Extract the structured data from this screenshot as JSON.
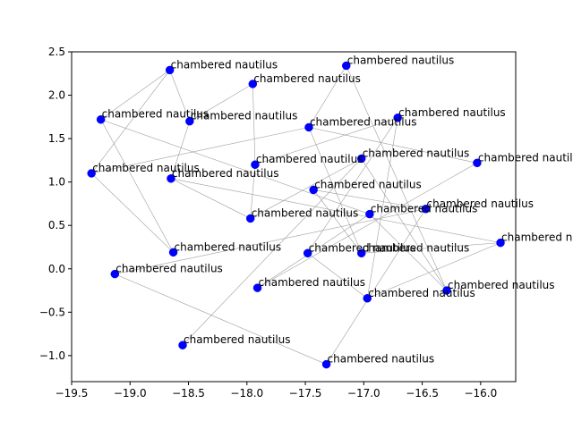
{
  "chart_data": {
    "type": "scatter",
    "title": "",
    "xlabel": "",
    "ylabel": "",
    "xlim": [
      -19.5,
      -15.7
    ],
    "ylim": [
      -1.3,
      2.5
    ],
    "x_ticks": [
      -19.5,
      -19.0,
      -18.5,
      -18.0,
      -17.5,
      -17.0,
      -16.5,
      -16.0
    ],
    "x_tick_labels": [
      "−19.5",
      "−19.0",
      "−18.5",
      "−18.0",
      "−17.5",
      "−17.0",
      "−16.5",
      "−16.0"
    ],
    "y_ticks": [
      -1.0,
      -0.5,
      0.0,
      0.5,
      1.0,
      1.5,
      2.0,
      2.5
    ],
    "y_tick_labels": [
      "−1.0",
      "−0.5",
      "0.0",
      "0.5",
      "1.0",
      "1.5",
      "2.0",
      "2.5"
    ],
    "grid": false,
    "point_color": "#0000ff",
    "edge_color": "#9e9e9e",
    "points": [
      {
        "x": -18.66,
        "y": 2.29,
        "label": "chambered nautilus"
      },
      {
        "x": -17.15,
        "y": 2.34,
        "label": "chambered nautilus"
      },
      {
        "x": -17.95,
        "y": 2.13,
        "label": "chambered nautilus"
      },
      {
        "x": -19.25,
        "y": 1.72,
        "label": "chambered nautilus"
      },
      {
        "x": -18.49,
        "y": 1.7,
        "label": "chambered nautilus"
      },
      {
        "x": -16.71,
        "y": 1.74,
        "label": "chambered nautilus"
      },
      {
        "x": -17.47,
        "y": 1.63,
        "label": "chambered nautilus"
      },
      {
        "x": -17.02,
        "y": 1.27,
        "label": "chambered nautilus"
      },
      {
        "x": -17.93,
        "y": 1.2,
        "label": "chambered nautilus"
      },
      {
        "x": -16.03,
        "y": 1.22,
        "label": "chambered nautilus"
      },
      {
        "x": -19.33,
        "y": 1.1,
        "label": "chambered nautilus"
      },
      {
        "x": -18.65,
        "y": 1.04,
        "label": "chambered nautilus"
      },
      {
        "x": -17.43,
        "y": 0.91,
        "label": "chambered nautilus"
      },
      {
        "x": -16.47,
        "y": 0.69,
        "label": "chambered nautilus"
      },
      {
        "x": -16.95,
        "y": 0.63,
        "label": "chambered nautilus"
      },
      {
        "x": -17.97,
        "y": 0.58,
        "label": "chambered nautilus"
      },
      {
        "x": -15.83,
        "y": 0.3,
        "label": "chambered nautilus"
      },
      {
        "x": -18.63,
        "y": 0.19,
        "label": "chambered nautilus"
      },
      {
        "x": -17.48,
        "y": 0.18,
        "label": "chambered nautilus"
      },
      {
        "x": -17.02,
        "y": 0.18,
        "label": "chambered nautilus"
      },
      {
        "x": -19.13,
        "y": -0.06,
        "label": "chambered nautilus"
      },
      {
        "x": -17.91,
        "y": -0.22,
        "label": "chambered nautilus"
      },
      {
        "x": -16.29,
        "y": -0.25,
        "label": "chambered nautilus"
      },
      {
        "x": -16.97,
        "y": -0.34,
        "label": "chambered nautilus"
      },
      {
        "x": -18.55,
        "y": -0.88,
        "label": "chambered nautilus"
      },
      {
        "x": -17.32,
        "y": -1.1,
        "label": "chambered nautilus"
      }
    ],
    "edges": [
      [
        0,
        3
      ],
      [
        0,
        4
      ],
      [
        0,
        10
      ],
      [
        1,
        6
      ],
      [
        1,
        22
      ],
      [
        2,
        4
      ],
      [
        2,
        8
      ],
      [
        3,
        14
      ],
      [
        3,
        17
      ],
      [
        4,
        11
      ],
      [
        5,
        8
      ],
      [
        5,
        18
      ],
      [
        6,
        9
      ],
      [
        6,
        19
      ],
      [
        7,
        22
      ],
      [
        7,
        24
      ],
      [
        8,
        15
      ],
      [
        9,
        21
      ],
      [
        10,
        17
      ],
      [
        11,
        15
      ],
      [
        12,
        13
      ],
      [
        12,
        19
      ],
      [
        13,
        25
      ],
      [
        13,
        20
      ],
      [
        14,
        22
      ],
      [
        16,
        23
      ],
      [
        19,
        16
      ],
      [
        20,
        25
      ],
      [
        21,
        14
      ],
      [
        6,
        10
      ],
      [
        7,
        15
      ],
      [
        5,
        23
      ],
      [
        18,
        23
      ],
      [
        11,
        16
      ]
    ]
  }
}
